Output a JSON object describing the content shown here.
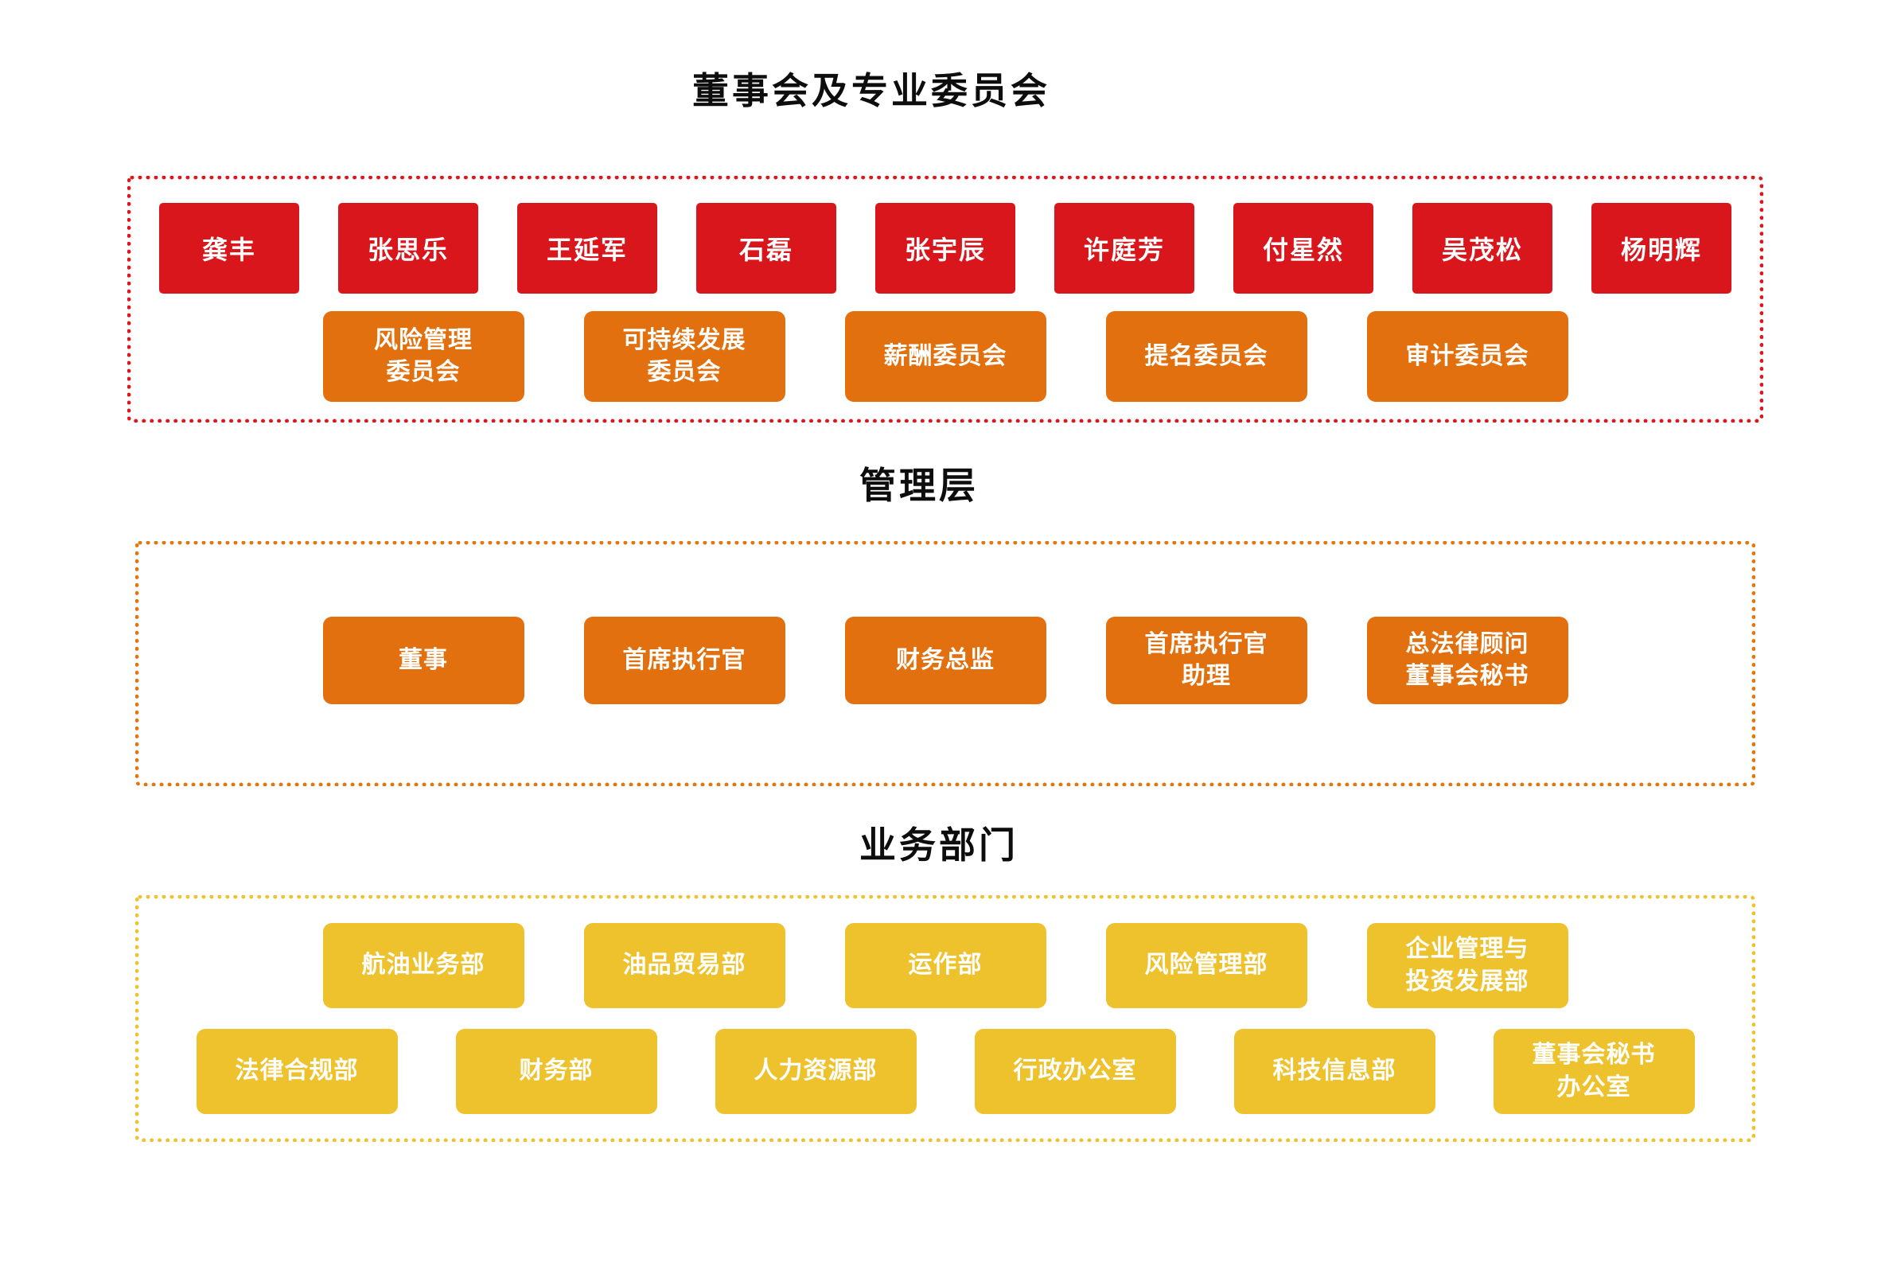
{
  "colors": {
    "member_red": "#d8161b",
    "committee_orange": "#e2700e",
    "department_yellow": "#eec22c",
    "board_frame_border": "#e0161c",
    "management_frame_border": "#e2760f",
    "departments_frame_border": "#eec22c",
    "title_text": "#0d0d0d",
    "node_text": "#ffffff",
    "background": "#ffffff"
  },
  "board": {
    "title": "董事会及专业委员会",
    "members": [
      "龚丰",
      "张思乐",
      "王延军",
      "石磊",
      "张宇辰",
      "许庭芳",
      "付星然",
      "吴茂松",
      "杨明辉"
    ],
    "committees": [
      "风险管理\n委员会",
      "可持续发展\n委员会",
      "薪酬委员会",
      "提名委员会",
      "审计委员会"
    ]
  },
  "management": {
    "title": "管理层",
    "roles": [
      "董事",
      "首席执行官",
      "财务总监",
      "首席执行官\n助理",
      "总法律顾问\n董事会秘书"
    ]
  },
  "departments": {
    "title": "业务部门",
    "row1": [
      "航油业务部",
      "油品贸易部",
      "运作部",
      "风险管理部",
      "企业管理与\n投资发展部"
    ],
    "row2": [
      "法律合规部",
      "财务部",
      "人力资源部",
      "行政办公室",
      "科技信息部",
      "董事会秘书\n办公室"
    ]
  }
}
